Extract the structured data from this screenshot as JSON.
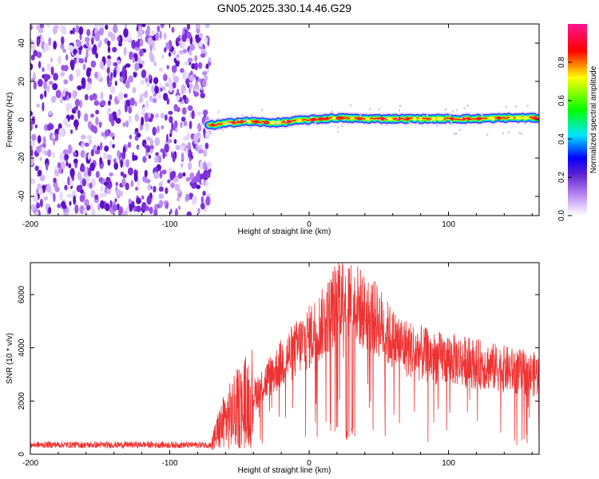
{
  "figure_title": "GN05.2025.330.14.46.G29",
  "chart_data": [
    {
      "type": "heatmap",
      "title": "",
      "xlabel": "Height of straight line (km)",
      "ylabel": "Frequency (Hz)",
      "xlim": [
        -200,
        165
      ],
      "ylim": [
        -50,
        50
      ],
      "xticks": [
        "-200",
        "-100",
        "0",
        "100"
      ],
      "yticks": [
        "-40",
        "-20",
        "0",
        "20",
        "40"
      ],
      "colorbar": {
        "label": "Normalized spectral amplitude",
        "range": [
          0,
          1
        ],
        "ticks": [
          "0.0",
          "0.2",
          "0.4",
          "0.6",
          "0.8"
        ],
        "colors": [
          "#ffffff",
          "#9a3fe0",
          "#0000ff",
          "#00e5ff",
          "#00ff00",
          "#ffff00",
          "#ff0000",
          "#ff1493"
        ]
      },
      "regions": [
        {
          "x": [
            -200,
            -71
          ],
          "description_level": "noise",
          "amplitude": 0.2
        },
        {
          "x": [
            -71,
            165
          ],
          "signal_frequency_hz": 0,
          "peak_amplitude": 0.9
        }
      ],
      "signal_track": {
        "x": [
          -72,
          -60,
          -50,
          -40,
          -30,
          -20,
          -10,
          0,
          10,
          20,
          40,
          60,
          80,
          100,
          120,
          140,
          165
        ],
        "y": [
          -3,
          -2,
          -1,
          -1,
          -1.5,
          -1.5,
          -0.5,
          0,
          0.5,
          1,
          0.5,
          0.5,
          0.5,
          0.5,
          0.5,
          1,
          1
        ]
      }
    },
    {
      "type": "line",
      "title": "",
      "xlabel": "Height of straight line (km)",
      "ylabel": "SNR (10 * v/v)",
      "xlim": [
        -200,
        165
      ],
      "ylim": [
        0,
        7200
      ],
      "xticks": [
        "-200",
        "-100",
        "0",
        "100"
      ],
      "yticks": [
        "0",
        "2000",
        "4000",
        "6000"
      ],
      "color": "#ee3333",
      "series": [
        {
          "x": [
            -200,
            -180,
            -160,
            -140,
            -120,
            -100,
            -80,
            -70,
            -65,
            -60,
            -55,
            -50,
            -45,
            -40,
            -35,
            -30,
            -25,
            -20,
            -15,
            -10,
            -5,
            0,
            5,
            10,
            15,
            20,
            25,
            30,
            35,
            40,
            45,
            50,
            55,
            60,
            70,
            80,
            90,
            100,
            110,
            120,
            130,
            140,
            150,
            160,
            165
          ],
          "y": [
            350,
            360,
            350,
            350,
            360,
            350,
            350,
            360,
            900,
            1300,
            1500,
            1800,
            2000,
            2200,
            2500,
            2800,
            3100,
            3400,
            3700,
            3900,
            4200,
            4400,
            4700,
            4900,
            5300,
            5800,
            6200,
            5900,
            5600,
            5300,
            5200,
            5000,
            4600,
            4300,
            4000,
            3800,
            3600,
            3600,
            3500,
            3400,
            3300,
            3200,
            3100,
            3000,
            3000
          ]
        }
      ],
      "dips": [
        {
          "x": 20,
          "y": 1000
        },
        {
          "x": 27,
          "y": 500
        },
        {
          "x": 31,
          "y": 700
        }
      ]
    }
  ]
}
